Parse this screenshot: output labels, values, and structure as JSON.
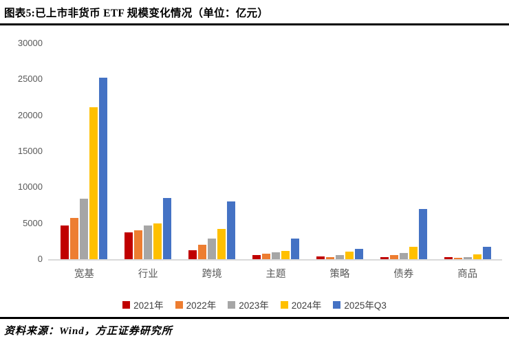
{
  "header": {
    "title": "图表5:已上市非货币 ETF 规模变化情况（单位：亿元）"
  },
  "footer": {
    "source": "资料来源：Wind，方正证券研究所"
  },
  "chart_data": {
    "type": "bar",
    "title": "已上市非货币 ETF 规模变化情况（单位：亿元）",
    "xlabel": "",
    "ylabel": "",
    "categories": [
      "宽基",
      "行业",
      "跨境",
      "主题",
      "策略",
      "债券",
      "商品"
    ],
    "series": [
      {
        "name": "2021年",
        "color": "#c00000",
        "values": [
          4650,
          3700,
          1250,
          620,
          400,
          280,
          310
        ]
      },
      {
        "name": "2022年",
        "color": "#ed7d31",
        "values": [
          5750,
          4000,
          2050,
          760,
          260,
          540,
          170
        ]
      },
      {
        "name": "2023年",
        "color": "#a6a6a6",
        "values": [
          8400,
          4650,
          2850,
          1000,
          540,
          820,
          290
        ]
      },
      {
        "name": "2024年",
        "color": "#ffc000",
        "values": [
          21100,
          4950,
          4200,
          1150,
          1050,
          1700,
          700
        ]
      },
      {
        "name": "2025年Q3",
        "color": "#4472c4",
        "values": [
          25200,
          8550,
          8050,
          2900,
          1450,
          7000,
          1700
        ]
      }
    ],
    "ylim": [
      0,
      30000
    ],
    "yticks": [
      0,
      5000,
      10000,
      15000,
      20000,
      25000,
      30000
    ],
    "grid": false,
    "legend_position": "bottom",
    "colors": {
      "axis_line": "#d9d9d9",
      "tick_text": "#595959",
      "legend_text": "#404040"
    }
  }
}
